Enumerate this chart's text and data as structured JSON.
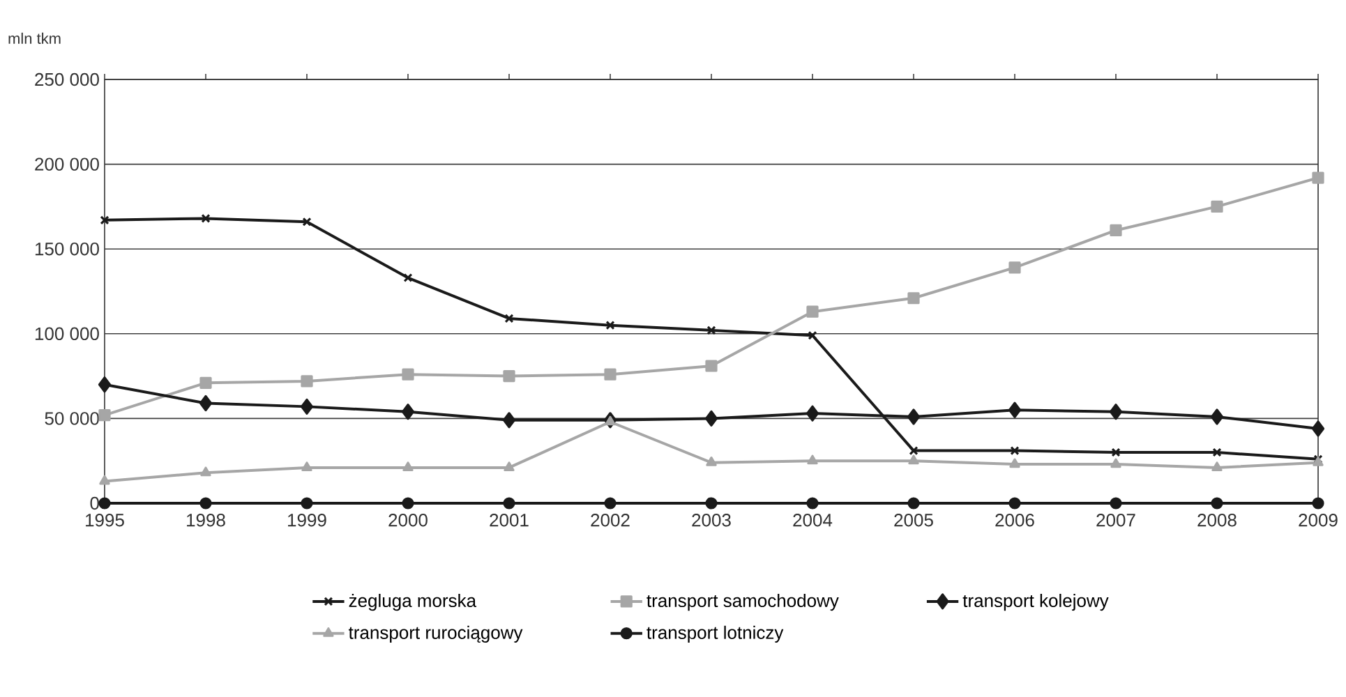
{
  "chart_data": {
    "type": "line",
    "ylabel": "mln tkm",
    "categories": [
      "1995",
      "1998",
      "1999",
      "2000",
      "2001",
      "2002",
      "2003",
      "2004",
      "2005",
      "2006",
      "2007",
      "2008",
      "2009"
    ],
    "series": [
      {
        "name": "żegluga morska",
        "color": "#1a1a1a",
        "marker": "cross",
        "values": [
          167000,
          168000,
          166000,
          133000,
          109000,
          105000,
          102000,
          99000,
          31000,
          31000,
          30000,
          30000,
          26000
        ]
      },
      {
        "name": "transport samochodowy",
        "color": "#a6a6a6",
        "marker": "square",
        "values": [
          52000,
          71000,
          72000,
          76000,
          75000,
          76000,
          81000,
          113000,
          121000,
          139000,
          161000,
          175000,
          192000
        ]
      },
      {
        "name": "transport kolejowy",
        "color": "#1a1a1a",
        "marker": "diamond",
        "values": [
          70000,
          59000,
          57000,
          54000,
          49000,
          49000,
          50000,
          53000,
          51000,
          55000,
          54000,
          51000,
          44000
        ]
      },
      {
        "name": "transport rurociągowy",
        "color": "#a6a6a6",
        "marker": "triangle",
        "values": [
          13000,
          18000,
          21000,
          21000,
          21000,
          48000,
          24000,
          25000,
          25000,
          23000,
          23000,
          21000,
          24000
        ]
      },
      {
        "name": "transport lotniczy",
        "color": "#1a1a1a",
        "marker": "circle",
        "values": [
          0,
          0,
          0,
          0,
          0,
          0,
          0,
          0,
          0,
          0,
          0,
          0,
          0
        ]
      }
    ],
    "ylim": [
      0,
      250000
    ],
    "yticks": [
      0,
      {
        "value": 50000,
        "label": "50 000"
      },
      {
        "value": 100000,
        "label": "100 000"
      },
      {
        "value": 150000,
        "label": "150 000"
      },
      {
        "value": 200000,
        "label": "200 000"
      },
      {
        "value": 250000,
        "label": "250 000"
      }
    ],
    "grid": "y",
    "legend": "bottom",
    "line_style": "solid"
  }
}
